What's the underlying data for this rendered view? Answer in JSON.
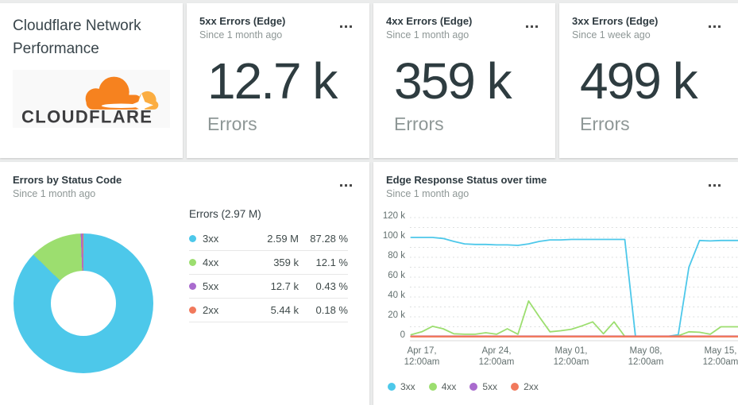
{
  "title_card": {
    "title": "Cloudflare Network Performance",
    "logo_text": "CLOUDFLARE"
  },
  "stat_cards": [
    {
      "title": "5xx Errors (Edge)",
      "subtitle": "Since 1 month ago",
      "value": "12.7 k",
      "label": "Errors"
    },
    {
      "title": "4xx Errors (Edge)",
      "subtitle": "Since 1 month ago",
      "value": "359 k",
      "label": "Errors"
    },
    {
      "title": "3xx Errors (Edge)",
      "subtitle": "Since 1 week ago",
      "value": "499 k",
      "label": "Errors"
    }
  ],
  "donut_card": {
    "title": "Errors by Status Code",
    "subtitle": "Since 1 month ago"
  },
  "timeseries_card": {
    "title": "Edge Response Status over time",
    "subtitle": "Since 1 month ago"
  },
  "icons": {
    "card_menu": "horizontal-ellipsis-dots",
    "logo": "cloudflare-cloud"
  },
  "colors": {
    "cyan": "#4dc8ea",
    "green": "#9cde6f",
    "purple": "#a96bce",
    "salmon": "#f1795c",
    "dark_text": "#2e3c40",
    "gray_text": "#8e9796",
    "axis_text": "#63706f",
    "logo_orange": "#f6821f",
    "logo_light_orange": "#fbad41",
    "logo_wordmark": "#3d3d3f"
  },
  "chart_data": [
    {
      "type": "pie",
      "style": "donut",
      "title": "Errors by Status Code",
      "total_label": "Errors (2.97 M)",
      "legend_position": "right-table",
      "slices": [
        {
          "label": "3xx",
          "value": 2590000,
          "display_value": "2.59 M",
          "percent": 87.28,
          "display_percent": "87.28 %",
          "color": "#4dc8ea"
        },
        {
          "label": "4xx",
          "value": 359000,
          "display_value": "359 k",
          "percent": 12.1,
          "display_percent": "12.1 %",
          "color": "#9cde6f"
        },
        {
          "label": "5xx",
          "value": 12700,
          "display_value": "12.7 k",
          "percent": 0.43,
          "display_percent": "0.43 %",
          "color": "#a96bce"
        },
        {
          "label": "2xx",
          "value": 5440,
          "display_value": "5.44 k",
          "percent": 0.18,
          "display_percent": "0.18 %",
          "color": "#f1795c"
        }
      ]
    },
    {
      "type": "line",
      "title": "Edge Response Status over time",
      "unit": "thousands",
      "ylim_k": [
        0,
        120
      ],
      "grid": "horizontal dotted every 10k",
      "legend_position": "bottom",
      "yticks": [
        "120 k",
        "100 k",
        "80 k",
        "60 k",
        "40 k",
        "20 k",
        "0"
      ],
      "x_ticks": [
        {
          "l1": "Apr 17,",
          "l2": "12:00am"
        },
        {
          "l1": "Apr 24,",
          "l2": "12:00am"
        },
        {
          "l1": "May 01,",
          "l2": "12:00am"
        },
        {
          "l1": "May 08,",
          "l2": "12:00am"
        },
        {
          "l1": "May 15,",
          "l2": "12:00am"
        }
      ],
      "points_per_day": 1,
      "series": [
        {
          "name": "3xx",
          "color": "#4dc8ea",
          "width": 1.8,
          "values_k": [
            100,
            100,
            100,
            99,
            96,
            93.5,
            93,
            93,
            92.5,
            92.5,
            92,
            93.5,
            96,
            97.5,
            97.5,
            98,
            98,
            98,
            98,
            98,
            98,
            0.5,
            0.3,
            0.3,
            0.3,
            2,
            70,
            97,
            96.5,
            97
          ]
        },
        {
          "name": "4xx",
          "color": "#9cde6f",
          "width": 1.8,
          "values_k": [
            2,
            5,
            10.5,
            8,
            3,
            2.5,
            2.5,
            4,
            2.5,
            8,
            2.5,
            36,
            20,
            5,
            6,
            7.5,
            11,
            15,
            3,
            15,
            0.3,
            0.2,
            0.2,
            0.2,
            0.2,
            1,
            5,
            4.5,
            2.5,
            10
          ]
        },
        {
          "name": "5xx",
          "color": "#a96bce",
          "width": 2.2,
          "values_k": [
            0.4,
            0.4,
            0.4,
            0.4,
            0.4,
            0.4,
            0.4,
            0.4,
            0.4,
            0.4,
            0.4,
            0.4,
            0.4,
            0.4,
            0.4,
            0.4,
            0.4,
            0.4,
            0.4,
            0.4,
            0.4,
            0.4,
            0.4,
            0.4,
            0.4,
            0.4,
            0.4,
            0.4,
            0.4,
            0.4
          ]
        },
        {
          "name": "2xx",
          "color": "#f1795c",
          "width": 2.4,
          "values_k": [
            0.18,
            0.18,
            0.18,
            0.18,
            0.18,
            0.18,
            0.18,
            0.18,
            0.18,
            0.18,
            0.18,
            0.18,
            0.18,
            0.18,
            0.18,
            0.18,
            0.18,
            0.18,
            0.18,
            0.18,
            0.18,
            0.18,
            0.18,
            0.18,
            0.18,
            0.18,
            0.18,
            0.18,
            0.18,
            0.18
          ]
        }
      ]
    }
  ]
}
